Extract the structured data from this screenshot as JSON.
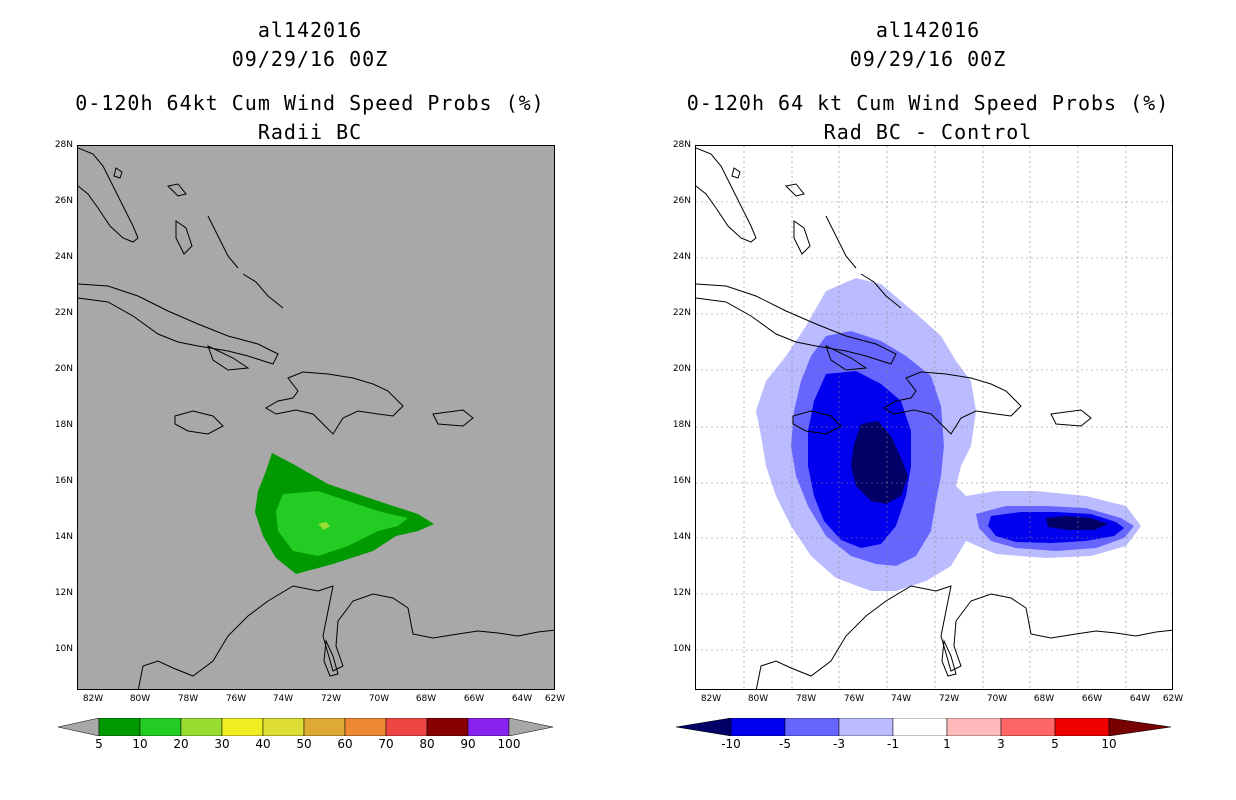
{
  "left": {
    "title": {
      "l1": "al142016",
      "l2": "09/29/16 00Z",
      "l3": "0-120h 64kt Cum Wind Speed Probs (%)",
      "l4": "Radii BC"
    },
    "background": "#a8a8a8",
    "colorbar_labels": [
      "5",
      "10",
      "20",
      "30",
      "40",
      "50",
      "60",
      "70",
      "80",
      "90",
      "100"
    ],
    "colorbar_colors": [
      "#009900",
      "#22cc22",
      "#99dd33",
      "#eeee22",
      "#dddd33",
      "#ddaa33",
      "#ee8833",
      "#ee4444",
      "#880000",
      "#8822ee"
    ]
  },
  "right": {
    "title": {
      "l1": "al142016",
      "l2": "09/29/16 00Z",
      "l3": "0-120h 64 kt Cum Wind Speed Probs (%)",
      "l4": "Rad BC - Control"
    },
    "background": "#ffffff",
    "colorbar_labels": [
      "-10",
      "-5",
      "-3",
      "-1",
      "1",
      "3",
      "5",
      "10"
    ],
    "colorbar_colors": [
      "#000066",
      "#0000ee",
      "#6666ff",
      "#bbbbff",
      "#ffffff",
      "#ffbbbb",
      "#ff6666",
      "#ee0000",
      "#770000"
    ]
  },
  "axes": {
    "lat_labels": [
      "28N",
      "26N",
      "24N",
      "22N",
      "20N",
      "18N",
      "16N",
      "14N",
      "12N",
      "10N"
    ],
    "lon_labels": [
      "82W",
      "80W",
      "78W",
      "76W",
      "74W",
      "72W",
      "70W",
      "68W",
      "66W",
      "64W",
      "62W"
    ]
  }
}
